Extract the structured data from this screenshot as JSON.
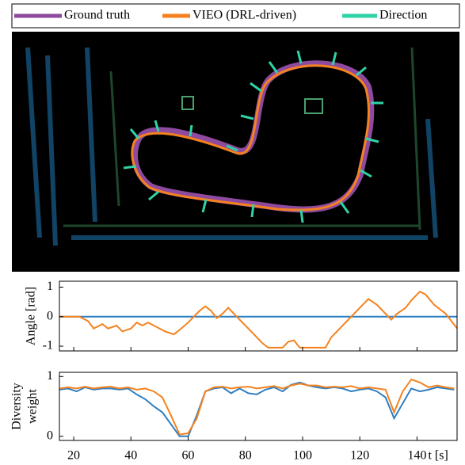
{
  "map": {
    "legend": [
      {
        "name": "Ground truth",
        "color": "#8e4a9e"
      },
      {
        "name": "VIEO (DRL-driven)",
        "color": "#f5821f"
      },
      {
        "name": "Direction",
        "color": "#2fd3a6"
      }
    ]
  },
  "chart_data": [
    {
      "type": "line",
      "ylabel": "Angle [rad]",
      "xlim": [
        15,
        154
      ],
      "ylim": [
        -1.16,
        1.2
      ],
      "xticks": [
        20,
        40,
        60,
        80,
        100,
        120,
        140
      ],
      "yticks": [
        -1,
        0,
        1
      ],
      "series": [
        {
          "color": "#2f7fc1",
          "x": [
            15,
            154
          ],
          "values": [
            0,
            0
          ]
        },
        {
          "color": "#f5821f",
          "x": [
            15,
            20,
            22,
            25,
            27,
            30,
            32,
            35,
            37,
            40,
            42,
            44,
            46,
            48,
            50,
            52,
            55,
            57,
            60,
            62,
            64,
            66,
            68,
            70,
            72,
            74,
            76,
            78,
            80,
            83,
            86,
            88,
            90,
            93,
            95,
            97,
            99,
            102,
            105,
            108,
            110,
            113,
            116,
            120,
            123,
            126,
            129,
            131,
            133,
            136,
            138,
            141,
            143,
            146,
            150,
            154
          ],
          "values": [
            0,
            0,
            0,
            -0.15,
            -0.4,
            -0.25,
            -0.4,
            -0.3,
            -0.5,
            -0.4,
            -0.2,
            -0.3,
            -0.2,
            -0.3,
            -0.4,
            -0.5,
            -0.6,
            -0.45,
            -0.2,
            0,
            0.2,
            0.35,
            0.2,
            -0.05,
            0.1,
            0.3,
            0.1,
            -0.1,
            -0.3,
            -0.6,
            -0.9,
            -1.05,
            -1.05,
            -1.05,
            -0.85,
            -0.8,
            -1.05,
            -1.05,
            -1.05,
            -1.05,
            -0.7,
            -0.4,
            -0.1,
            0.3,
            0.6,
            0.4,
            0.1,
            -0.1,
            0.1,
            0.3,
            0.55,
            0.85,
            0.75,
            0.4,
            0.1,
            -0.4
          ]
        }
      ]
    },
    {
      "type": "line",
      "ylabel": [
        "Diversity",
        "weight"
      ],
      "xlabel": "t [s]",
      "xlim": [
        15,
        154
      ],
      "ylim": [
        -0.07,
        1.07
      ],
      "xticks": [
        20,
        40,
        60,
        80,
        100,
        120,
        140
      ],
      "yticks": [
        0,
        1
      ],
      "series": [
        {
          "color": "#2f7fc1",
          "x": [
            15,
            18,
            21,
            24,
            27,
            30,
            33,
            36,
            39,
            42,
            45,
            48,
            51,
            54,
            57,
            60,
            63,
            66,
            69,
            72,
            75,
            78,
            81,
            84,
            87,
            90,
            93,
            96,
            99,
            102,
            105,
            108,
            111,
            114,
            117,
            120,
            123,
            126,
            129,
            132,
            135,
            138,
            141,
            144,
            147,
            150,
            153
          ],
          "values": [
            0.78,
            0.8,
            0.75,
            0.82,
            0.78,
            0.8,
            0.8,
            0.78,
            0.8,
            0.7,
            0.62,
            0.5,
            0.4,
            0.2,
            0.0,
            0.0,
            0.35,
            0.75,
            0.8,
            0.82,
            0.72,
            0.8,
            0.72,
            0.7,
            0.78,
            0.82,
            0.75,
            0.86,
            0.9,
            0.85,
            0.82,
            0.8,
            0.82,
            0.8,
            0.75,
            0.78,
            0.8,
            0.75,
            0.65,
            0.3,
            0.55,
            0.8,
            0.75,
            0.78,
            0.82,
            0.8,
            0.78
          ]
        },
        {
          "color": "#f5821f",
          "x": [
            15,
            18,
            21,
            24,
            27,
            30,
            33,
            36,
            39,
            42,
            45,
            48,
            51,
            54,
            57,
            60,
            63,
            66,
            69,
            72,
            75,
            78,
            81,
            84,
            87,
            90,
            93,
            96,
            99,
            102,
            105,
            108,
            111,
            114,
            117,
            120,
            123,
            126,
            129,
            132,
            135,
            138,
            141,
            144,
            147,
            150,
            153
          ],
          "values": [
            0.8,
            0.82,
            0.8,
            0.83,
            0.8,
            0.82,
            0.83,
            0.8,
            0.82,
            0.78,
            0.8,
            0.75,
            0.65,
            0.35,
            0.03,
            0.05,
            0.3,
            0.75,
            0.82,
            0.83,
            0.8,
            0.82,
            0.83,
            0.8,
            0.82,
            0.84,
            0.8,
            0.85,
            0.88,
            0.85,
            0.85,
            0.82,
            0.83,
            0.82,
            0.84,
            0.8,
            0.82,
            0.8,
            0.78,
            0.4,
            0.75,
            0.95,
            0.9,
            0.82,
            0.85,
            0.82,
            0.8
          ]
        }
      ]
    }
  ]
}
